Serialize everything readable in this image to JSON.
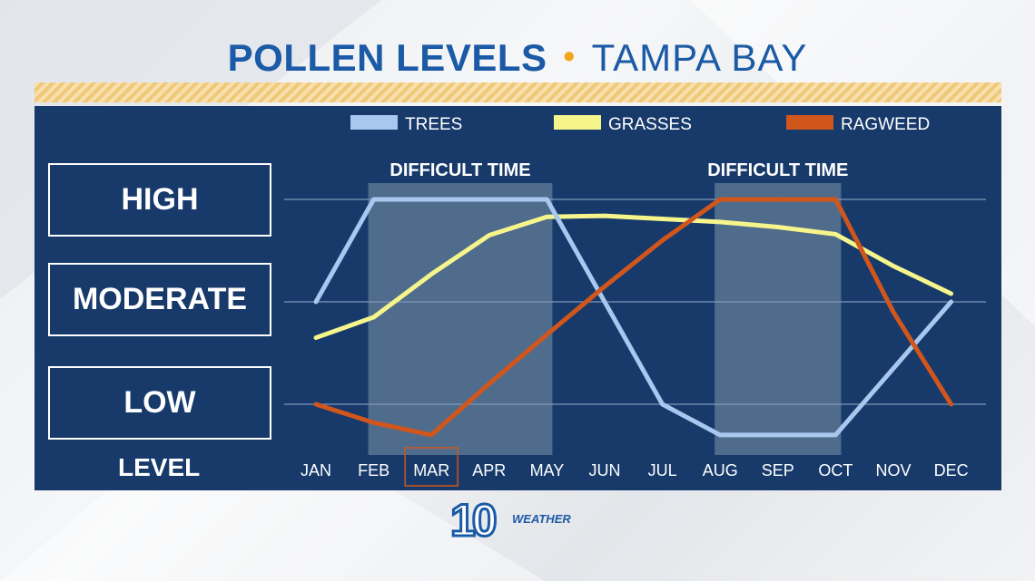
{
  "header": {
    "title_main": "POLLEN LEVELS",
    "title_sep": "•",
    "title_place": "TAMPA BAY"
  },
  "levels": {
    "high": "HIGH",
    "moderate": "MODERATE",
    "low": "LOW",
    "axis_label": "LEVEL"
  },
  "logo": {
    "number": "10",
    "text": "WEATHER"
  },
  "colors": {
    "panel": "#173a6b",
    "trees": "#a9c8f0",
    "grasses": "#f5f58c",
    "ragweed": "#d0561c",
    "shade": "#5b7593",
    "highlight_box": "#d0561c",
    "title": "#1b5aa6",
    "accent": "#f2a71b"
  },
  "chart_data": {
    "type": "line",
    "categories": [
      "JAN",
      "FEB",
      "MAR",
      "APR",
      "MAY",
      "JUN",
      "JUL",
      "AUG",
      "SEP",
      "OCT",
      "NOV",
      "DEC"
    ],
    "y_levels": [
      "LOW",
      "MODERATE",
      "HIGH"
    ],
    "ylim": [
      0.7,
      3.3
    ],
    "highlighted_category": "MAR",
    "series": [
      {
        "name": "TREES",
        "color": "#a9c8f0",
        "values": [
          2.0,
          3.0,
          3.0,
          3.0,
          3.0,
          2.0,
          1.0,
          0.7,
          0.7,
          0.7,
          1.35,
          2.0
        ]
      },
      {
        "name": "GRASSES",
        "color": "#f5f58c",
        "values": [
          1.65,
          1.85,
          2.27,
          2.65,
          2.83,
          2.84,
          2.81,
          2.78,
          2.73,
          2.66,
          2.35,
          2.08
        ]
      },
      {
        "name": "RAGWEED",
        "color": "#d0561c",
        "values": [
          1.0,
          0.82,
          0.7,
          1.2,
          1.68,
          2.15,
          2.6,
          3.0,
          3.0,
          3.0,
          1.9,
          1.0
        ]
      }
    ],
    "shaded_regions": [
      {
        "label": "DIFFICULT TIME",
        "from": "FEB",
        "to": "MAY"
      },
      {
        "label": "DIFFICULT TIME",
        "from": "AUG",
        "to": "OCT"
      }
    ],
    "grid": true,
    "legend": "top"
  }
}
